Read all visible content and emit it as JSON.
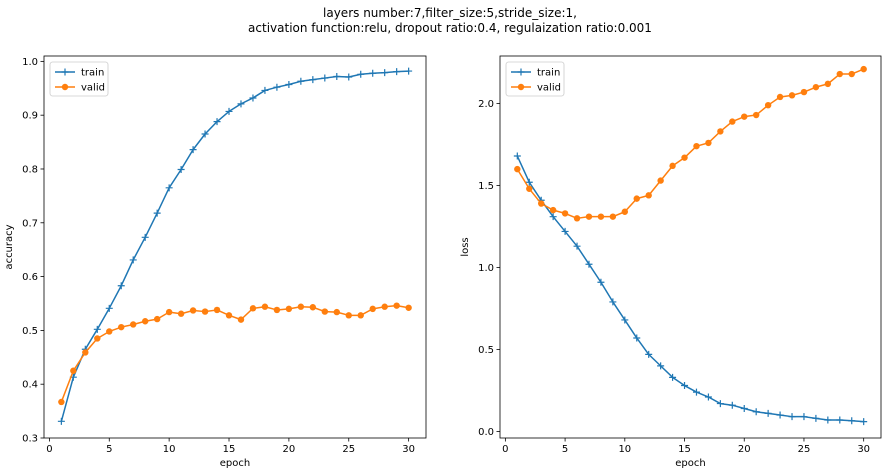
{
  "suptitle": [
    "layers number:7,filter_size:5,stride_size:1,",
    "activation function:relu, dropout ratio:0.4, regulaization ratio:0.001"
  ],
  "colors": {
    "train": "#1f77b4",
    "valid": "#ff7f0e"
  },
  "chart_data": [
    {
      "type": "line",
      "title": "",
      "xlabel": "epoch",
      "ylabel": "accuracy",
      "xlim": [
        -0.45,
        31.45
      ],
      "ylim": [
        0.3,
        1.01
      ],
      "xticks": [
        0,
        5,
        10,
        15,
        20,
        25,
        30
      ],
      "yticks": [
        0.3,
        0.4,
        0.5,
        0.6,
        0.7,
        0.8,
        0.9,
        1.0
      ],
      "ytick_labels": [
        "0.3",
        "0.4",
        "0.5",
        "0.6",
        "0.7",
        "0.8",
        "0.9",
        "1.0"
      ],
      "legend": "top-left",
      "x": [
        1,
        2,
        3,
        4,
        5,
        6,
        7,
        8,
        9,
        10,
        11,
        12,
        13,
        14,
        15,
        16,
        17,
        18,
        19,
        20,
        21,
        22,
        23,
        24,
        25,
        26,
        27,
        28,
        29,
        30
      ],
      "series": [
        {
          "name": "train",
          "marker": "plus",
          "values": [
            0.331,
            0.413,
            0.465,
            0.502,
            0.541,
            0.583,
            0.631,
            0.673,
            0.718,
            0.765,
            0.799,
            0.836,
            0.865,
            0.888,
            0.907,
            0.921,
            0.932,
            0.946,
            0.952,
            0.957,
            0.963,
            0.966,
            0.969,
            0.972,
            0.971,
            0.976,
            0.978,
            0.979,
            0.981,
            0.982
          ]
        },
        {
          "name": "valid",
          "marker": "circle",
          "values": [
            0.367,
            0.425,
            0.459,
            0.485,
            0.498,
            0.506,
            0.511,
            0.517,
            0.521,
            0.534,
            0.531,
            0.537,
            0.535,
            0.538,
            0.528,
            0.52,
            0.541,
            0.544,
            0.538,
            0.54,
            0.544,
            0.543,
            0.535,
            0.534,
            0.528,
            0.528,
            0.54,
            0.544,
            0.546,
            0.542
          ]
        }
      ]
    },
    {
      "type": "line",
      "title": "",
      "xlabel": "epoch",
      "ylabel": "loss",
      "xlim": [
        -0.45,
        31.45
      ],
      "ylim": [
        -0.04,
        2.29
      ],
      "xticks": [
        0,
        5,
        10,
        15,
        20,
        25,
        30
      ],
      "yticks": [
        0.0,
        0.5,
        1.0,
        1.5,
        2.0
      ],
      "ytick_labels": [
        "0.0",
        "0.5",
        "1.0",
        "1.5",
        "2.0"
      ],
      "legend": "top-left",
      "x": [
        1,
        2,
        3,
        4,
        5,
        6,
        7,
        8,
        9,
        10,
        11,
        12,
        13,
        14,
        15,
        16,
        17,
        18,
        19,
        20,
        21,
        22,
        23,
        24,
        25,
        26,
        27,
        28,
        29,
        30
      ],
      "series": [
        {
          "name": "train",
          "marker": "plus",
          "values": [
            1.68,
            1.52,
            1.41,
            1.31,
            1.22,
            1.13,
            1.02,
            0.91,
            0.79,
            0.68,
            0.57,
            0.47,
            0.4,
            0.33,
            0.28,
            0.24,
            0.21,
            0.17,
            0.16,
            0.14,
            0.12,
            0.11,
            0.1,
            0.09,
            0.09,
            0.08,
            0.07,
            0.07,
            0.065,
            0.06
          ]
        },
        {
          "name": "valid",
          "marker": "circle",
          "values": [
            1.6,
            1.48,
            1.39,
            1.35,
            1.33,
            1.3,
            1.31,
            1.31,
            1.31,
            1.34,
            1.42,
            1.44,
            1.53,
            1.62,
            1.67,
            1.74,
            1.76,
            1.83,
            1.89,
            1.92,
            1.93,
            1.99,
            2.04,
            2.05,
            2.07,
            2.1,
            2.12,
            2.18,
            2.18,
            2.21
          ]
        }
      ]
    }
  ]
}
